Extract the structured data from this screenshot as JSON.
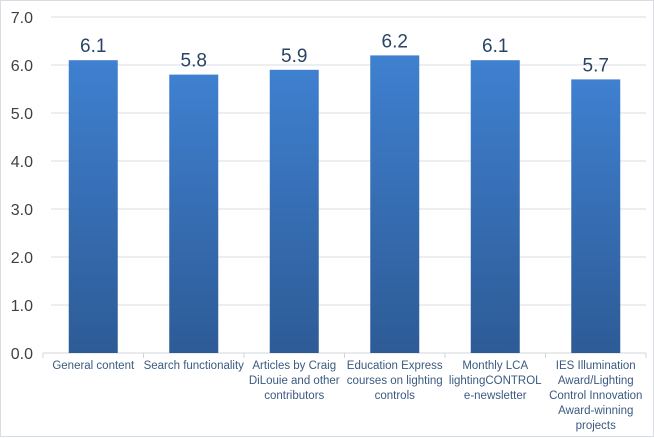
{
  "chart_data": {
    "type": "bar",
    "title": "",
    "xlabel": "",
    "ylabel": "",
    "ylim": [
      0,
      7
    ],
    "yticks": [
      "0.0",
      "1.0",
      "2.0",
      "3.0",
      "4.0",
      "5.0",
      "6.0",
      "7.0"
    ],
    "grid": true,
    "categories": [
      "General content",
      "Search functionality",
      "Articles by Craig DiLouie and other contributors",
      "Education Express courses on lighting controls",
      "Monthly LCA lightingCONTROL e-newsletter",
      "IES Illumination Award/Lighting Control Innovation Award-winning projects"
    ],
    "values": [
      6.1,
      5.8,
      5.9,
      6.2,
      6.1,
      5.7
    ],
    "data_labels": [
      "6.1",
      "5.8",
      "5.9",
      "6.2",
      "6.1",
      "5.7"
    ],
    "colors": {
      "bar_top": "#3f80d0",
      "bar_bottom": "#2d5b96",
      "grid": "#d9dde3",
      "text": "#3b5a80"
    }
  }
}
